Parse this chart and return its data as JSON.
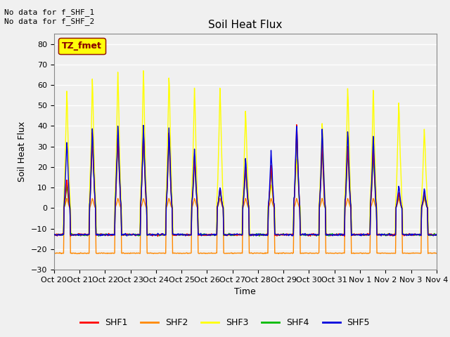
{
  "title": "Soil Heat Flux",
  "ylabel": "Soil Heat Flux",
  "xlabel": "Time",
  "annotations": [
    "No data for f_SHF_1",
    "No data for f_SHF_2"
  ],
  "legend_label": "TZ_fmet",
  "legend_colors": {
    "SHF1": "#ff0000",
    "SHF2": "#ff8800",
    "SHF3": "#ffff00",
    "SHF4": "#00bb00",
    "SHF5": "#0000dd"
  },
  "xtick_labels": [
    "Oct 20",
    "Oct 21",
    "Oct 22",
    "Oct 23",
    "Oct 24",
    "Oct 25",
    "Oct 26",
    "Oct 27",
    "Oct 28",
    "Oct 29",
    "Oct 30",
    "Oct 31",
    "Nov 1",
    "Nov 2",
    "Nov 3",
    "Nov 4"
  ],
  "ylim": [
    -30,
    85
  ],
  "yticks": [
    -30,
    -20,
    -10,
    0,
    10,
    20,
    30,
    40,
    50,
    60,
    70,
    80
  ],
  "fig_bg": "#f0f0f0",
  "plot_bg": "#f0f0f0",
  "grid_color": "#ffffff",
  "line_width": 1.0
}
